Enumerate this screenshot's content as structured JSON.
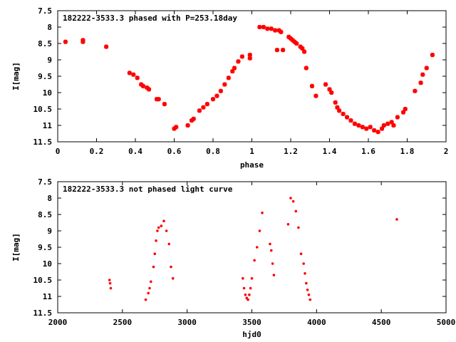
{
  "chart_data": [
    {
      "type": "scatter",
      "title": "182222-3533.3 phased with P=253.18day",
      "xlabel": "phase",
      "ylabel": "I[mag]",
      "xlim": [
        0,
        2
      ],
      "ylim": [
        7.5,
        11.5
      ],
      "y_inverted": true,
      "xticks": [
        "0",
        "0.2",
        "0.4",
        "0.6",
        "0.8",
        "1",
        "1.2",
        "1.4",
        "1.6",
        "1.8",
        "2"
      ],
      "yticks": [
        "7.5",
        "8",
        "8.5",
        "9",
        "9.5",
        "10",
        "10.5",
        "11",
        "11.5"
      ],
      "grid": false,
      "marker_color": "#ff0000",
      "series": [
        {
          "x": [
            0.04,
            0.13,
            0.13,
            0.25,
            0.37,
            0.39,
            0.41,
            0.43,
            0.44,
            0.46,
            0.47,
            0.51,
            0.52,
            0.55,
            0.6,
            0.61,
            0.67,
            0.69,
            0.7,
            0.73,
            0.75,
            0.77,
            0.8,
            0.82,
            0.84,
            0.86,
            0.88,
            0.9,
            0.91,
            0.93,
            0.95,
            0.99,
            0.99,
            1.04,
            1.06,
            1.08,
            1.1,
            1.12,
            1.13,
            1.14,
            1.15,
            1.16,
            1.19,
            1.2,
            1.21,
            1.22,
            1.23,
            1.25,
            1.26,
            1.27,
            1.28,
            1.31,
            1.33,
            1.38,
            1.4,
            1.41,
            1.43,
            1.44,
            1.45,
            1.47,
            1.49,
            1.51,
            1.53,
            1.55,
            1.57,
            1.59,
            1.61,
            1.63,
            1.65,
            1.67,
            1.68,
            1.7,
            1.72,
            1.73,
            1.75,
            1.78,
            1.79,
            1.84,
            1.87,
            1.88,
            1.9,
            1.93
          ],
          "y": [
            8.45,
            8.4,
            8.45,
            8.6,
            9.4,
            9.45,
            9.55,
            9.75,
            9.8,
            9.85,
            9.9,
            10.2,
            10.2,
            10.35,
            11.1,
            11.05,
            11.0,
            10.85,
            10.8,
            10.55,
            10.45,
            10.35,
            10.2,
            10.1,
            9.95,
            9.75,
            9.55,
            9.35,
            9.25,
            9.05,
            8.9,
            8.85,
            8.95,
            8.0,
            8.0,
            8.05,
            8.05,
            8.1,
            8.7,
            8.1,
            8.15,
            8.7,
            8.3,
            8.35,
            8.4,
            8.45,
            8.5,
            8.6,
            8.65,
            8.75,
            9.25,
            9.8,
            10.1,
            9.75,
            9.9,
            10.0,
            10.3,
            10.45,
            10.55,
            10.65,
            10.75,
            10.85,
            10.95,
            11.0,
            11.05,
            11.1,
            11.05,
            11.15,
            11.2,
            11.1,
            11.0,
            10.95,
            10.9,
            11.0,
            10.75,
            10.6,
            10.5,
            9.95,
            9.7,
            9.45,
            9.25,
            8.85
          ]
        }
      ]
    },
    {
      "type": "scatter",
      "title": "182222-3533.3 not phased light curve",
      "xlabel": "hjd0",
      "ylabel": "I[mag]",
      "xlim": [
        2000,
        5000
      ],
      "ylim": [
        7.5,
        11.5
      ],
      "y_inverted": true,
      "xticks": [
        "2000",
        "2500",
        "3000",
        "3500",
        "4000",
        "4500",
        "5000"
      ],
      "yticks": [
        "7.5",
        "8",
        "8.5",
        "9",
        "9.5",
        "10",
        "10.5",
        "11",
        "11.5"
      ],
      "grid": false,
      "marker_color": "#ff0000",
      "series": [
        {
          "x": [
            2400,
            2405,
            2410,
            2680,
            2700,
            2710,
            2720,
            2740,
            2750,
            2760,
            2770,
            2780,
            2800,
            2820,
            2840,
            2860,
            2875,
            2890,
            3430,
            3440,
            3450,
            3460,
            3470,
            3480,
            3490,
            3500,
            3520,
            3540,
            3560,
            3580,
            3640,
            3650,
            3660,
            3670,
            3780,
            3800,
            3820,
            3840,
            3860,
            3880,
            3900,
            3910,
            3920,
            3930,
            3940,
            3950,
            4620
          ],
          "y": [
            10.5,
            10.6,
            10.75,
            11.1,
            10.9,
            10.75,
            10.55,
            10.1,
            9.7,
            9.3,
            9.0,
            8.9,
            8.85,
            8.7,
            9.0,
            9.4,
            10.1,
            10.45,
            10.45,
            10.75,
            10.95,
            11.05,
            11.1,
            10.95,
            10.75,
            10.45,
            9.9,
            9.5,
            9.0,
            8.45,
            9.4,
            9.6,
            10.0,
            10.35,
            8.8,
            8.0,
            8.1,
            8.4,
            8.9,
            9.7,
            10.0,
            10.3,
            10.6,
            10.8,
            10.95,
            11.1,
            8.65
          ]
        }
      ]
    }
  ]
}
